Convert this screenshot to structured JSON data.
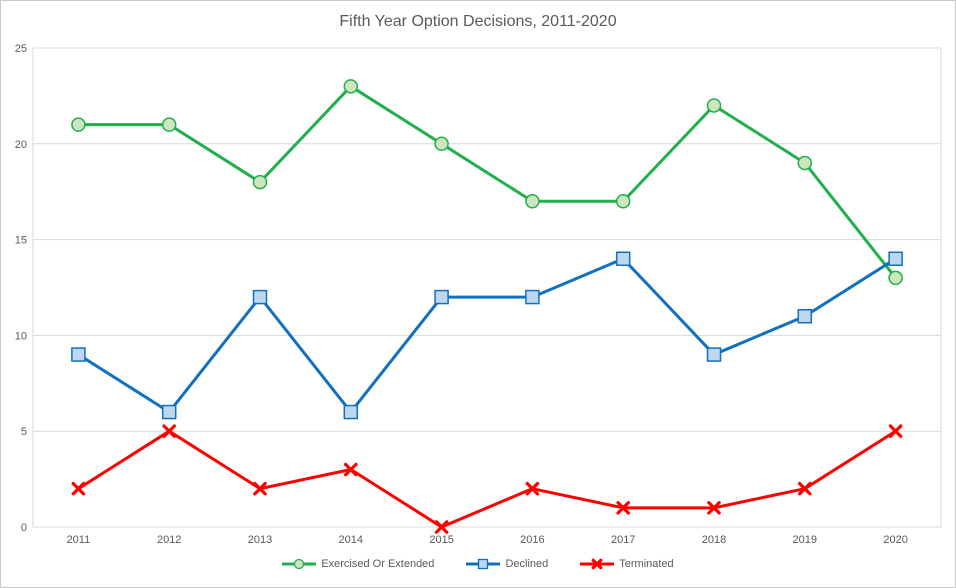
{
  "chart_data": {
    "type": "line",
    "title": "Fifth Year Option Decisions, 2011-2020",
    "categories": [
      "2011",
      "2012",
      "2013",
      "2014",
      "2015",
      "2016",
      "2017",
      "2018",
      "2019",
      "2020"
    ],
    "series": [
      {
        "name": "Exercised Or Extended",
        "marker": "circle",
        "color": "#21af4b",
        "marker_fill": "#cde6c0",
        "values": [
          21,
          21,
          18,
          23,
          20,
          17,
          17,
          22,
          19,
          13
        ]
      },
      {
        "name": "Declined",
        "marker": "square",
        "color": "#1170c0",
        "marker_fill": "#bdd7ee",
        "values": [
          9,
          6,
          12,
          6,
          12,
          12,
          14,
          9,
          11,
          14
        ]
      },
      {
        "name": "Terminated",
        "marker": "x",
        "color": "#fe0000",
        "marker_fill": "#fe0000",
        "values": [
          2,
          5,
          2,
          3,
          0,
          2,
          1,
          1,
          2,
          5
        ]
      }
    ],
    "xlabel": "",
    "ylabel": "",
    "ylim": [
      0,
      25
    ],
    "yticks": [
      0,
      5,
      10,
      15,
      20,
      25
    ],
    "grid": "horizontal",
    "gridline_color": "#d9d9d9",
    "axis_text_color": "#595959",
    "legend_position": "bottom"
  }
}
